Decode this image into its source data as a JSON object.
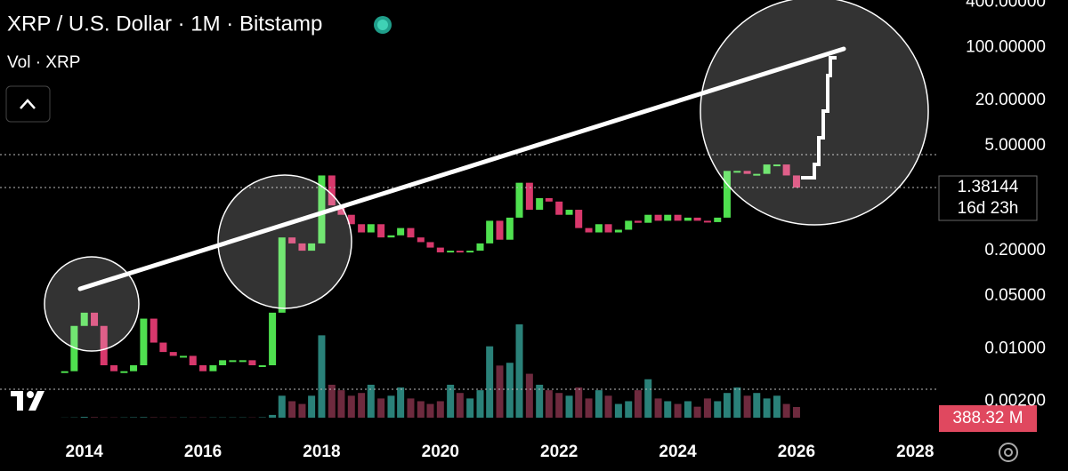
{
  "chart_data": {
    "type": "candlestick",
    "title": "XRP / U.S. Dollar · 1M · Bitstamp",
    "x": [
      2013.67,
      2013.83,
      2014.0,
      2014.17,
      2014.33,
      2014.5,
      2014.67,
      2014.83,
      2015.0,
      2015.17,
      2015.33,
      2015.5,
      2015.67,
      2015.83,
      2016.0,
      2016.17,
      2016.33,
      2016.5,
      2016.67,
      2016.83,
      2017.0,
      2017.17,
      2017.33,
      2017.5,
      2017.67,
      2017.83,
      2018.0,
      2018.17,
      2018.33,
      2018.5,
      2018.67,
      2018.83,
      2019.0,
      2019.17,
      2019.33,
      2019.5,
      2019.67,
      2019.83,
      2020.0,
      2020.17,
      2020.33,
      2020.5,
      2020.67,
      2020.83,
      2021.0,
      2021.17,
      2021.33,
      2021.5,
      2021.67,
      2021.83,
      2022.0,
      2022.17,
      2022.33,
      2022.5,
      2022.67,
      2022.83,
      2023.0,
      2023.17,
      2023.33,
      2023.5,
      2023.67,
      2023.83,
      2024.0,
      2024.17,
      2024.33,
      2024.5,
      2024.67,
      2024.83,
      2025.0,
      2025.17,
      2025.33,
      2025.5,
      2025.67,
      2025.83,
      2026.0
    ],
    "close": [
      0.005,
      0.02,
      0.03,
      0.02,
      0.006,
      0.005,
      0.005,
      0.006,
      0.025,
      0.012,
      0.009,
      0.008,
      0.008,
      0.006,
      0.005,
      0.006,
      0.007,
      0.007,
      0.007,
      0.006,
      0.006,
      0.03,
      0.3,
      0.25,
      0.2,
      0.25,
      2.0,
      0.8,
      0.6,
      0.45,
      0.35,
      0.45,
      0.3,
      0.32,
      0.4,
      0.3,
      0.26,
      0.22,
      0.19,
      0.2,
      0.19,
      0.2,
      0.25,
      0.5,
      0.28,
      0.55,
      1.6,
      0.7,
      1.0,
      0.9,
      0.6,
      0.7,
      0.4,
      0.35,
      0.45,
      0.35,
      0.38,
      0.5,
      0.47,
      0.6,
      0.5,
      0.6,
      0.5,
      0.55,
      0.5,
      0.48,
      0.55,
      2.3,
      2.3,
      2.1,
      2.1,
      2.8,
      2.8,
      2.0,
      1.38144
    ],
    "countdown": "16d 23h",
    "volume": {
      "name": "Vol · XRP",
      "values": [
        5,
        10,
        30,
        20,
        10,
        10,
        10,
        15,
        20,
        15,
        10,
        10,
        10,
        10,
        10,
        10,
        10,
        10,
        10,
        10,
        15,
        100,
        800,
        600,
        500,
        800,
        3000,
        1200,
        1000,
        800,
        900,
        1200,
        700,
        800,
        1100,
        700,
        600,
        500,
        600,
        1200,
        900,
        700,
        1000,
        2600,
        1900,
        2000,
        3400,
        1600,
        1200,
        1000,
        900,
        800,
        1100,
        700,
        1000,
        800,
        500,
        600,
        1000,
        1400,
        700,
        600,
        500,
        600,
        400,
        700,
        600,
        900,
        1100,
        800,
        900,
        700,
        800,
        500,
        388.32
      ],
      "last_label": "388.32 M"
    },
    "up_color": "#4fe04f",
    "down_color": "#d8386c",
    "log_scale": true,
    "xlim": [
      2012.58,
      2028.4
    ],
    "xticks": [
      2014,
      2016,
      2018,
      2020,
      2022,
      2024,
      2026,
      2028
    ],
    "ylim": [
      0.0007,
      430
    ],
    "yticks": [
      {
        "value": 400,
        "label": "400.00000"
      },
      {
        "value": 100,
        "label": "100.00000"
      },
      {
        "value": 20,
        "label": "20.00000"
      },
      {
        "value": 5,
        "label": "5.00000"
      },
      {
        "value": 0.2,
        "label": "0.20000"
      },
      {
        "value": 0.05,
        "label": "0.05000"
      },
      {
        "value": 0.01,
        "label": "0.01000"
      },
      {
        "value": 0.002,
        "label": "0.00200"
      }
    ]
  }
}
